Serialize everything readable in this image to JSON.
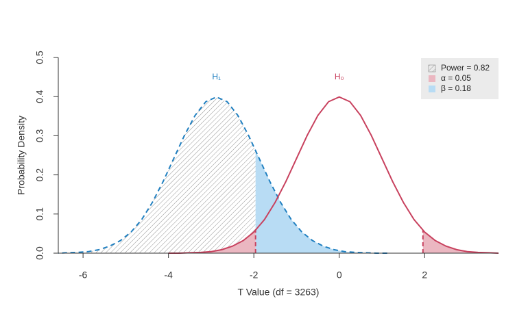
{
  "chart_data": {
    "type": "power",
    "xlabel": "T Value (df = 3263)",
    "ylabel": "Probability Density",
    "xlim": [
      -6.58,
      3.73
    ],
    "ylim": [
      0,
      0.5
    ],
    "xticks": [
      -6,
      -4,
      -2,
      0,
      2
    ],
    "yticks": [
      {
        "value": 0,
        "label": "0.0"
      },
      0.1,
      0.2,
      0.3,
      0.4,
      {
        "value": 0.5,
        "label": "0.5"
      }
    ],
    "critical_values": [
      -1.96,
      1.96
    ],
    "series": [
      {
        "label": "H₁",
        "color": "#1f7fc0",
        "dashed": true,
        "shade_left": "hatch",
        "shade_right": "#b8dcf4",
        "x": [
          -6.875,
          -6.625,
          -6.375,
          -6.125,
          -5.875,
          -5.625,
          -5.375,
          -5.125,
          -4.875,
          -4.625,
          -4.375,
          -4.125,
          -3.875,
          -3.625,
          -3.375,
          -3.125,
          -2.875,
          -2.625,
          -2.375,
          -2.125,
          -1.875,
          -1.625,
          -1.375,
          -1.125,
          -0.875,
          -0.625,
          -0.375,
          -0.125,
          0.125,
          0.375,
          0.625,
          0.875,
          1.125
        ],
        "values": [
          0,
          0,
          0.001,
          0.002,
          0.004,
          0.009,
          0.018,
          0.032,
          0.054,
          0.086,
          0.13,
          0.183,
          0.242,
          0.301,
          0.352,
          0.387,
          0.399,
          0.387,
          0.352,
          0.301,
          0.242,
          0.183,
          0.13,
          0.086,
          0.054,
          0.032,
          0.018,
          0.009,
          0.004,
          0.002,
          0.001,
          0,
          0
        ]
      },
      {
        "label": "H₀",
        "color": "#c8415e",
        "dashed": false,
        "shade_tails": "#ebb7c1",
        "x": [
          -4,
          -3.75,
          -3.5,
          -3.25,
          -3,
          -2.75,
          -2.5,
          -2.25,
          -2,
          -1.75,
          -1.5,
          -1.25,
          -1,
          -0.75,
          -0.5,
          -0.25,
          0,
          0.25,
          0.5,
          0.75,
          1,
          1.25,
          1.5,
          1.75,
          2,
          2.25,
          2.5,
          2.75,
          3,
          3.25,
          3.5,
          3.75
        ],
        "values": [
          0,
          0,
          0.001,
          0.002,
          0.004,
          0.009,
          0.018,
          0.032,
          0.054,
          0.086,
          0.13,
          0.183,
          0.242,
          0.301,
          0.352,
          0.387,
          0.399,
          0.387,
          0.352,
          0.301,
          0.242,
          0.183,
          0.13,
          0.086,
          0.054,
          0.032,
          0.018,
          0.009,
          0.004,
          0.002,
          0.001,
          0
        ]
      }
    ],
    "legend": {
      "position": "top-right",
      "background": "#ebebeb",
      "entries": [
        {
          "label": "Power = 0.82",
          "fill": "hatch"
        },
        {
          "label": "α = 0.05",
          "fill": "#ebb7c1"
        },
        {
          "label": "β = 0.18",
          "fill": "#b8dcf4"
        }
      ]
    }
  }
}
